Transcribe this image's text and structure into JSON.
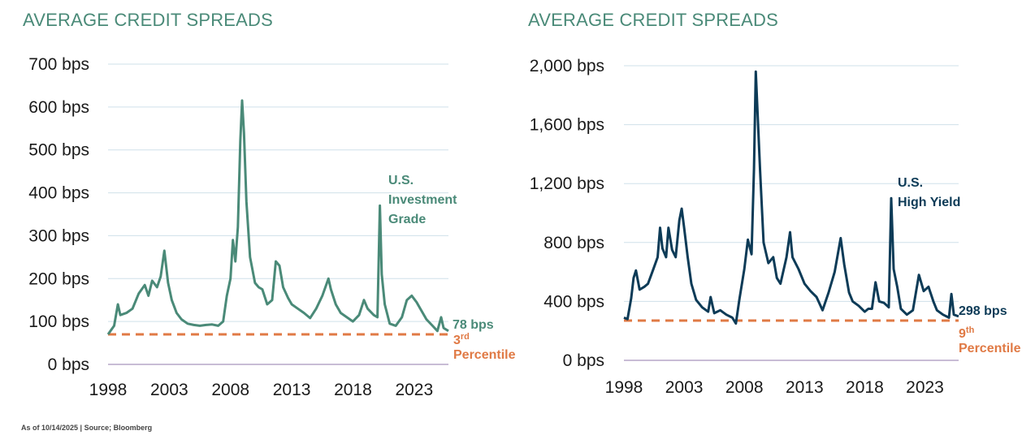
{
  "chart_data": [
    {
      "type": "line",
      "title": "AVERAGE CREDIT SPREADS",
      "series": [
        {
          "name": "U.S. Investment Grade",
          "name_lines": [
            "U.S.",
            "Investment",
            "Grade"
          ],
          "color": "#4a8a78",
          "points": [
            [
              1998.0,
              70
            ],
            [
              1998.5,
              90
            ],
            [
              1998.8,
              140
            ],
            [
              1999.0,
              115
            ],
            [
              1999.5,
              120
            ],
            [
              2000.0,
              130
            ],
            [
              2000.5,
              165
            ],
            [
              2001.0,
              185
            ],
            [
              2001.3,
              160
            ],
            [
              2001.6,
              195
            ],
            [
              2002.0,
              180
            ],
            [
              2002.3,
              205
            ],
            [
              2002.6,
              265
            ],
            [
              2002.9,
              190
            ],
            [
              2003.2,
              150
            ],
            [
              2003.6,
              120
            ],
            [
              2004.0,
              105
            ],
            [
              2004.5,
              95
            ],
            [
              2005.0,
              92
            ],
            [
              2005.5,
              90
            ],
            [
              2006.0,
              92
            ],
            [
              2006.5,
              93
            ],
            [
              2007.0,
              90
            ],
            [
              2007.4,
              100
            ],
            [
              2007.7,
              160
            ],
            [
              2008.0,
              200
            ],
            [
              2008.2,
              290
            ],
            [
              2008.4,
              240
            ],
            [
              2008.6,
              320
            ],
            [
              2008.8,
              520
            ],
            [
              2008.95,
              615
            ],
            [
              2009.1,
              540
            ],
            [
              2009.3,
              380
            ],
            [
              2009.6,
              250
            ],
            [
              2010.0,
              190
            ],
            [
              2010.3,
              180
            ],
            [
              2010.6,
              175
            ],
            [
              2011.0,
              140
            ],
            [
              2011.4,
              150
            ],
            [
              2011.7,
              240
            ],
            [
              2012.0,
              230
            ],
            [
              2012.3,
              180
            ],
            [
              2012.7,
              155
            ],
            [
              2013.0,
              140
            ],
            [
              2013.5,
              130
            ],
            [
              2014.0,
              120
            ],
            [
              2014.5,
              108
            ],
            [
              2015.0,
              130
            ],
            [
              2015.5,
              160
            ],
            [
              2016.0,
              200
            ],
            [
              2016.2,
              175
            ],
            [
              2016.6,
              140
            ],
            [
              2017.0,
              120
            ],
            [
              2017.5,
              110
            ],
            [
              2018.0,
              100
            ],
            [
              2018.5,
              115
            ],
            [
              2018.9,
              150
            ],
            [
              2019.2,
              130
            ],
            [
              2019.7,
              115
            ],
            [
              2020.0,
              110
            ],
            [
              2020.2,
              370
            ],
            [
              2020.35,
              210
            ],
            [
              2020.6,
              140
            ],
            [
              2021.0,
              95
            ],
            [
              2021.5,
              90
            ],
            [
              2022.0,
              110
            ],
            [
              2022.4,
              150
            ],
            [
              2022.8,
              160
            ],
            [
              2023.2,
              145
            ],
            [
              2023.6,
              125
            ],
            [
              2024.0,
              105
            ],
            [
              2024.5,
              90
            ],
            [
              2024.9,
              78
            ],
            [
              2025.2,
              110
            ],
            [
              2025.4,
              85
            ],
            [
              2025.8,
              78
            ]
          ]
        }
      ],
      "y_ticks": [
        0,
        100,
        200,
        300,
        400,
        500,
        600,
        700
      ],
      "y_tick_labels": [
        "0 bps",
        "100 bps",
        "200 bps",
        "300 bps",
        "400 bps",
        "500 bps",
        "600 bps",
        "700 bps"
      ],
      "x_ticks": [
        1998,
        2003,
        2008,
        2013,
        2018,
        2023
      ],
      "x_tick_labels": [
        "1998",
        "2003",
        "2008",
        "2013",
        "2018",
        "2023"
      ],
      "ylim": [
        0,
        700
      ],
      "xlim": [
        1998,
        2025.8
      ],
      "reference_line": {
        "value": 70,
        "color": "#e07a45"
      },
      "current_label": "78 bps",
      "percentile_number": "3",
      "percentile_suffix": "rd",
      "percentile_word": "Percentile",
      "grid": true,
      "grid_color": "#cfe0ea",
      "zero_line_color": "#b6a5c7"
    },
    {
      "type": "line",
      "title": "AVERAGE CREDIT SPREADS",
      "series": [
        {
          "name": "U.S. High Yield",
          "name_lines": [
            "U.S.",
            "High Yield"
          ],
          "color": "#0d3b57",
          "points": [
            [
              1998.0,
              290
            ],
            [
              1998.3,
              280
            ],
            [
              1998.6,
              420
            ],
            [
              1998.8,
              560
            ],
            [
              1999.0,
              610
            ],
            [
              1999.3,
              480
            ],
            [
              1999.7,
              500
            ],
            [
              2000.0,
              520
            ],
            [
              2000.4,
              610
            ],
            [
              2000.8,
              700
            ],
            [
              2001.0,
              900
            ],
            [
              2001.2,
              760
            ],
            [
              2001.5,
              700
            ],
            [
              2001.7,
              900
            ],
            [
              2002.0,
              750
            ],
            [
              2002.3,
              700
            ],
            [
              2002.6,
              950
            ],
            [
              2002.8,
              1030
            ],
            [
              2003.0,
              900
            ],
            [
              2003.3,
              700
            ],
            [
              2003.6,
              520
            ],
            [
              2004.0,
              410
            ],
            [
              2004.5,
              360
            ],
            [
              2005.0,
              330
            ],
            [
              2005.2,
              430
            ],
            [
              2005.5,
              320
            ],
            [
              2006.0,
              340
            ],
            [
              2006.5,
              310
            ],
            [
              2007.0,
              290
            ],
            [
              2007.3,
              250
            ],
            [
              2007.6,
              420
            ],
            [
              2008.0,
              620
            ],
            [
              2008.3,
              820
            ],
            [
              2008.6,
              720
            ],
            [
              2008.8,
              1300
            ],
            [
              2008.95,
              1960
            ],
            [
              2009.1,
              1680
            ],
            [
              2009.3,
              1300
            ],
            [
              2009.6,
              800
            ],
            [
              2010.0,
              660
            ],
            [
              2010.4,
              700
            ],
            [
              2010.7,
              560
            ],
            [
              2011.0,
              520
            ],
            [
              2011.5,
              700
            ],
            [
              2011.8,
              870
            ],
            [
              2012.0,
              700
            ],
            [
              2012.5,
              620
            ],
            [
              2013.0,
              520
            ],
            [
              2013.5,
              470
            ],
            [
              2014.0,
              430
            ],
            [
              2014.5,
              340
            ],
            [
              2015.0,
              460
            ],
            [
              2015.5,
              600
            ],
            [
              2016.0,
              830
            ],
            [
              2016.3,
              650
            ],
            [
              2016.7,
              460
            ],
            [
              2017.0,
              400
            ],
            [
              2017.5,
              370
            ],
            [
              2018.0,
              330
            ],
            [
              2018.3,
              350
            ],
            [
              2018.6,
              350
            ],
            [
              2018.9,
              530
            ],
            [
              2019.2,
              400
            ],
            [
              2019.6,
              390
            ],
            [
              2020.0,
              360
            ],
            [
              2020.2,
              1100
            ],
            [
              2020.4,
              620
            ],
            [
              2020.7,
              500
            ],
            [
              2021.0,
              350
            ],
            [
              2021.5,
              310
            ],
            [
              2022.0,
              340
            ],
            [
              2022.5,
              580
            ],
            [
              2022.9,
              470
            ],
            [
              2023.3,
              500
            ],
            [
              2023.7,
              400
            ],
            [
              2024.0,
              340
            ],
            [
              2024.5,
              310
            ],
            [
              2025.0,
              290
            ],
            [
              2025.2,
              450
            ],
            [
              2025.4,
              310
            ],
            [
              2025.8,
              298
            ]
          ]
        }
      ],
      "y_ticks": [
        0,
        400,
        800,
        1200,
        1600,
        2000
      ],
      "y_tick_labels": [
        "0 bps",
        "400 bps",
        "800 bps",
        "1,200 bps",
        "1,600 bps",
        "2,000 bps"
      ],
      "x_ticks": [
        1998,
        2003,
        2008,
        2013,
        2018,
        2023
      ],
      "x_tick_labels": [
        "1998",
        "2003",
        "2008",
        "2013",
        "2018",
        "2023"
      ],
      "ylim": [
        0,
        2000
      ],
      "xlim": [
        1998,
        2025.8
      ],
      "reference_line": {
        "value": 270,
        "color": "#e07a45"
      },
      "current_label": "298 bps",
      "percentile_number": "9",
      "percentile_suffix": "th",
      "percentile_word": "Percentile",
      "grid": true,
      "grid_color": "#cfe0ea",
      "zero_line_color": "#b6a5c7"
    }
  ],
  "footnote": "As of 10/14/2025 | Source; Bloomberg"
}
